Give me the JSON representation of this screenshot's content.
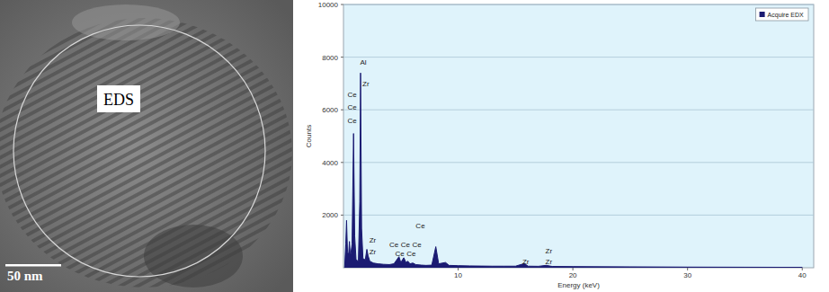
{
  "image": {
    "label": "EDS",
    "scale_bar": "50 nm"
  },
  "chart_data": {
    "type": "area",
    "x_label": "Energy (keV)",
    "y_label": "Counts",
    "xlim": [
      0,
      41
    ],
    "xticks": [
      10,
      20,
      30,
      40
    ],
    "ylim": [
      0,
      10000
    ],
    "yticks": [
      2000,
      4000,
      6000,
      8000,
      10000
    ],
    "grid": true,
    "legend": "upper right",
    "series": [
      {
        "name": "Acquire EDX",
        "color": "#1b1b72",
        "x": [
          0.1,
          0.2,
          0.27,
          0.35,
          0.45,
          0.52,
          0.6,
          0.75,
          0.88,
          0.98,
          1.1,
          1.3,
          1.42,
          1.49,
          1.58,
          1.7,
          1.9,
          2.04,
          2.15,
          2.3,
          2.6,
          3.0,
          3.5,
          4.0,
          4.4,
          4.84,
          5.0,
          5.26,
          5.45,
          5.61,
          5.8,
          6.05,
          6.3,
          6.8,
          7.2,
          7.7,
          8.05,
          8.3,
          8.9,
          9.2,
          10,
          11,
          12,
          13,
          14,
          15,
          15.77,
          16.1,
          17.0,
          17.67,
          18.2,
          20,
          25,
          30,
          35,
          40
        ],
        "values": [
          0,
          900,
          1800,
          600,
          500,
          1000,
          400,
          900,
          5100,
          1200,
          300,
          250,
          2500,
          7400,
          1500,
          350,
          300,
          700,
          450,
          250,
          180,
          150,
          130,
          120,
          150,
          420,
          200,
          380,
          200,
          250,
          150,
          180,
          120,
          100,
          90,
          100,
          800,
          150,
          200,
          90,
          80,
          70,
          65,
          60,
          60,
          60,
          160,
          60,
          55,
          90,
          50,
          45,
          35,
          25,
          20,
          15
        ]
      }
    ],
    "annotations": [
      {
        "text": "Ce",
        "x": 0.35,
        "y": 6500
      },
      {
        "text": "Ce",
        "x": 0.35,
        "y": 6000
      },
      {
        "text": "Ce",
        "x": 0.35,
        "y": 5500
      },
      {
        "text": "Al",
        "x": 1.45,
        "y": 7700
      },
      {
        "text": "Zr",
        "x": 1.65,
        "y": 6900
      },
      {
        "text": "Zr",
        "x": 2.25,
        "y": 950
      },
      {
        "text": "Zr",
        "x": 2.25,
        "y": 520
      },
      {
        "text": "Ce",
        "x": 4.0,
        "y": 800
      },
      {
        "text": "Ce",
        "x": 5.0,
        "y": 800
      },
      {
        "text": "Ce",
        "x": 6.0,
        "y": 800
      },
      {
        "text": "Ce",
        "x": 4.5,
        "y": 450
      },
      {
        "text": "Ce",
        "x": 5.5,
        "y": 450
      },
      {
        "text": "Ce",
        "x": 6.3,
        "y": 1500
      },
      {
        "text": "Zr",
        "x": 15.6,
        "y": 150
      },
      {
        "text": "Zr",
        "x": 17.6,
        "y": 550
      },
      {
        "text": "Zr",
        "x": 17.6,
        "y": 150
      }
    ]
  }
}
